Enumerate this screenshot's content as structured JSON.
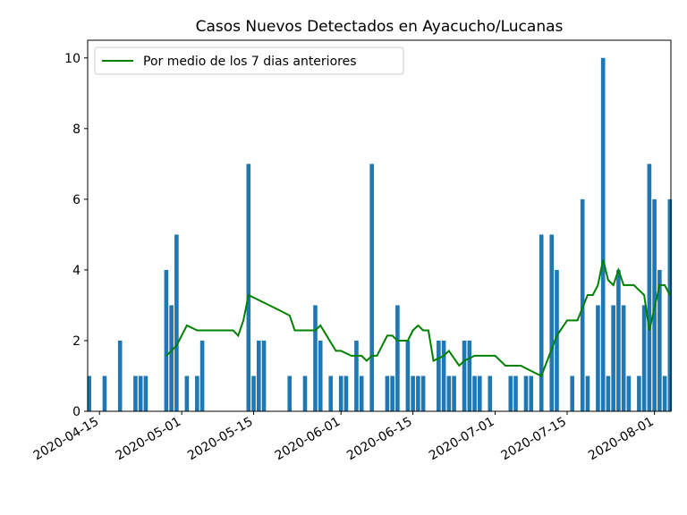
{
  "chart_data": {
    "type": "bar",
    "title": "Casos Nuevos Detectados en Ayacucho/Lucanas",
    "xlabel": "",
    "ylabel": "",
    "x_range": [
      "2020-04-13",
      "2020-08-04"
    ],
    "ylim": [
      0,
      10.5
    ],
    "x_ticks": [
      "2020-04-15",
      "2020-05-01",
      "2020-05-15",
      "2020-06-01",
      "2020-06-15",
      "2020-07-01",
      "2020-07-15",
      "2020-08-01"
    ],
    "y_ticks": [
      0,
      2,
      4,
      6,
      8,
      10
    ],
    "grid": false,
    "legend_position": "top-left",
    "bar_color": "#1f77b4",
    "line_color": "#008000",
    "series": [
      {
        "type": "bar",
        "dates": [
          "2020-04-13",
          "2020-04-16",
          "2020-04-19",
          "2020-04-22",
          "2020-04-23",
          "2020-04-24",
          "2020-04-28",
          "2020-04-29",
          "2020-04-30",
          "2020-05-02",
          "2020-05-04",
          "2020-05-05",
          "2020-05-14",
          "2020-05-15",
          "2020-05-16",
          "2020-05-17",
          "2020-05-22",
          "2020-05-25",
          "2020-05-27",
          "2020-05-28",
          "2020-05-30",
          "2020-06-01",
          "2020-06-02",
          "2020-06-04",
          "2020-06-05",
          "2020-06-07",
          "2020-06-10",
          "2020-06-11",
          "2020-06-12",
          "2020-06-14",
          "2020-06-15",
          "2020-06-16",
          "2020-06-17",
          "2020-06-20",
          "2020-06-21",
          "2020-06-22",
          "2020-06-23",
          "2020-06-25",
          "2020-06-26",
          "2020-06-27",
          "2020-06-28",
          "2020-06-30",
          "2020-07-04",
          "2020-07-05",
          "2020-07-07",
          "2020-07-08",
          "2020-07-10",
          "2020-07-12",
          "2020-07-13",
          "2020-07-16",
          "2020-07-18",
          "2020-07-19",
          "2020-07-21",
          "2020-07-22",
          "2020-07-23",
          "2020-07-24",
          "2020-07-25",
          "2020-07-26",
          "2020-07-27",
          "2020-07-29",
          "2020-07-30",
          "2020-07-31",
          "2020-08-01",
          "2020-08-02",
          "2020-08-03",
          "2020-08-04"
        ],
        "values": [
          1,
          1,
          2,
          1,
          1,
          1,
          4,
          3,
          5,
          1,
          1,
          2,
          7,
          1,
          2,
          2,
          1,
          1,
          3,
          2,
          1,
          1,
          1,
          2,
          1,
          7,
          1,
          1,
          3,
          2,
          1,
          1,
          1,
          2,
          2,
          1,
          1,
          2,
          2,
          1,
          1,
          1,
          1,
          1,
          1,
          1,
          5,
          5,
          4,
          1,
          6,
          1,
          3,
          10,
          1,
          3,
          4,
          3,
          1,
          1,
          3,
          7,
          6,
          4,
          1,
          6
        ]
      },
      {
        "type": "line",
        "name": "Por medio de los 7 dias anteriores",
        "dates": [
          "2020-04-28",
          "2020-04-30",
          "2020-05-02",
          "2020-05-04",
          "2020-05-11",
          "2020-05-12",
          "2020-05-13",
          "2020-05-14",
          "2020-05-20",
          "2020-05-22",
          "2020-05-23",
          "2020-05-25",
          "2020-05-27",
          "2020-05-28",
          "2020-05-31",
          "2020-06-01",
          "2020-06-03",
          "2020-06-05",
          "2020-06-06",
          "2020-06-07",
          "2020-06-08",
          "2020-06-10",
          "2020-06-11",
          "2020-06-12",
          "2020-06-14",
          "2020-06-15",
          "2020-06-16",
          "2020-06-17",
          "2020-06-18",
          "2020-06-19",
          "2020-06-21",
          "2020-06-22",
          "2020-06-24",
          "2020-06-25",
          "2020-06-27",
          "2020-07-01",
          "2020-07-02",
          "2020-07-03",
          "2020-07-05",
          "2020-07-06",
          "2020-07-08",
          "2020-07-10",
          "2020-07-13",
          "2020-07-15",
          "2020-07-17",
          "2020-07-19",
          "2020-07-20",
          "2020-07-21",
          "2020-07-22",
          "2020-07-23",
          "2020-07-24",
          "2020-07-25",
          "2020-07-26",
          "2020-07-28",
          "2020-07-30",
          "2020-07-31",
          "2020-08-02",
          "2020-08-03",
          "2020-08-04"
        ],
        "values": [
          1.57,
          1.86,
          2.43,
          2.29,
          2.29,
          2.14,
          2.57,
          3.29,
          2.86,
          2.71,
          2.29,
          2.29,
          2.29,
          2.43,
          1.71,
          1.71,
          1.57,
          1.57,
          1.43,
          1.57,
          1.57,
          2.14,
          2.14,
          2.0,
          2.0,
          2.29,
          2.43,
          2.29,
          2.29,
          1.43,
          1.57,
          1.71,
          1.29,
          1.43,
          1.57,
          1.57,
          1.43,
          1.29,
          1.29,
          1.29,
          1.14,
          1.0,
          2.14,
          2.57,
          2.57,
          3.29,
          3.29,
          3.57,
          4.29,
          3.71,
          3.57,
          4.0,
          3.57,
          3.57,
          3.29,
          2.29,
          3.57,
          3.57,
          3.29
        ]
      }
    ]
  }
}
